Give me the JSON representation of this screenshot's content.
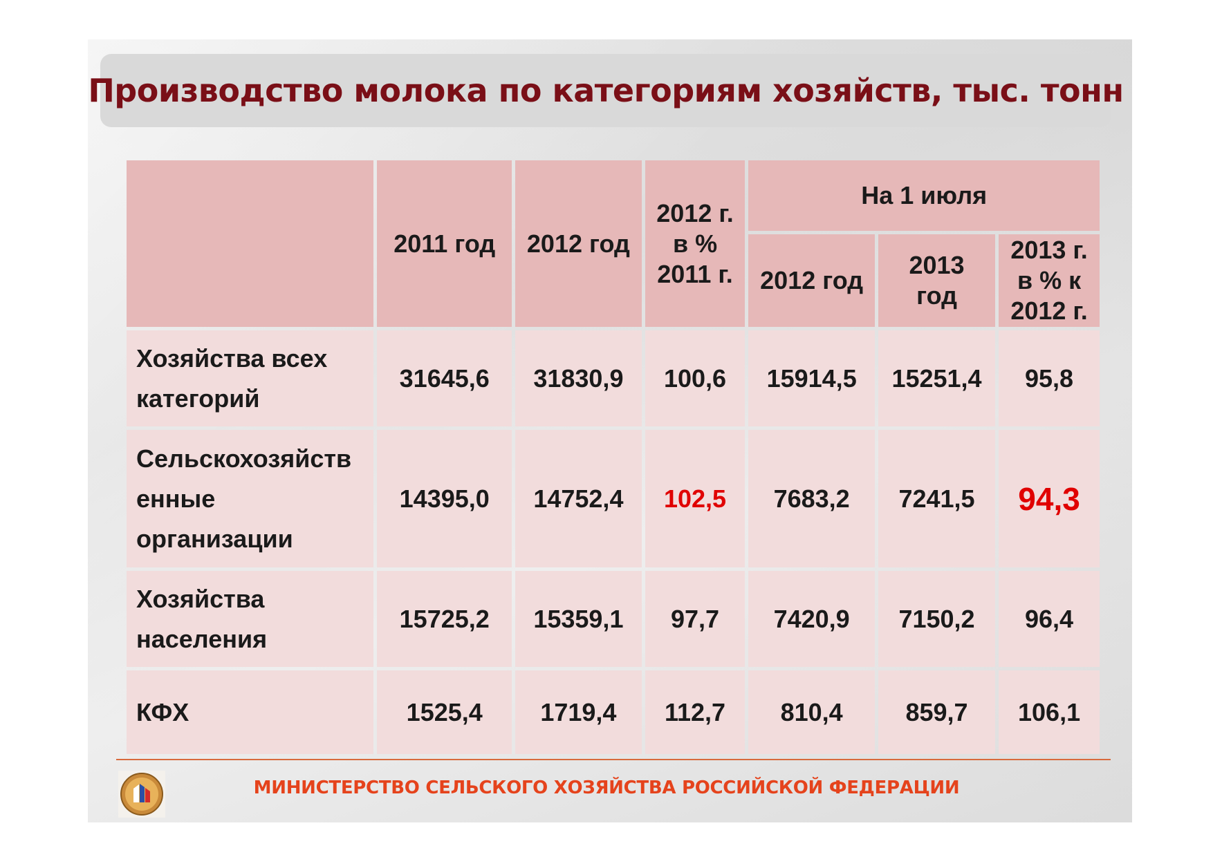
{
  "title": "Производство молока по категориям хозяйств, тыс. тонн",
  "header": {
    "corner": "",
    "col_2011": "2011 год",
    "col_2012": "2012 год",
    "col_pct_line1": "2012 г.",
    "col_pct_line2": "в %",
    "col_pct_line3": "2011 г.",
    "group_july": "На 1 июля",
    "july_2012": "2012 год",
    "july_2013_line1": "2013",
    "july_2013_line2": "год",
    "july_pct_line1": "2013 г.",
    "july_pct_line2": "в % к",
    "july_pct_line3": "2012 г."
  },
  "rows": [
    {
      "label_lines": [
        "Хозяйства всех",
        "категорий"
      ],
      "v2011": "31645,6",
      "v2012": "31830,9",
      "pct": "100,6",
      "july2012": "15914,5",
      "july2013": "15251,4",
      "july_pct": "95,8"
    },
    {
      "label_lines": [
        "Сельскохозяйств",
        "енные",
        "организации"
      ],
      "v2011": "14395,0",
      "v2012": "14752,4",
      "pct": "102,5",
      "july2012": "7683,2",
      "july2013": "7241,5",
      "july_pct": "94,3"
    },
    {
      "label_lines": [
        "Хозяйства",
        "населения"
      ],
      "v2011": "15725,2",
      "v2012": "15359,1",
      "pct": "97,7",
      "july2012": "7420,9",
      "july2013": "7150,2",
      "july_pct": "96,4"
    },
    {
      "label_lines": [
        "КФХ"
      ],
      "v2011": "1525,4",
      "v2012": "1719,4",
      "pct": "112,7",
      "july2012": "810,4",
      "july2013": "859,7",
      "july_pct": "106,1"
    }
  ],
  "footer": "МИНИСТЕРСТВО СЕЛЬСКОГО ХОЗЯЙСТВА РОССИЙСКОЙ ФЕДЕРАЦИИ",
  "colors": {
    "title": "#7a0f17",
    "header_bg": "#e6b8b8",
    "cell_bg": "#f2dcdc",
    "highlight": "#e00000",
    "footer": "#e5431c"
  }
}
